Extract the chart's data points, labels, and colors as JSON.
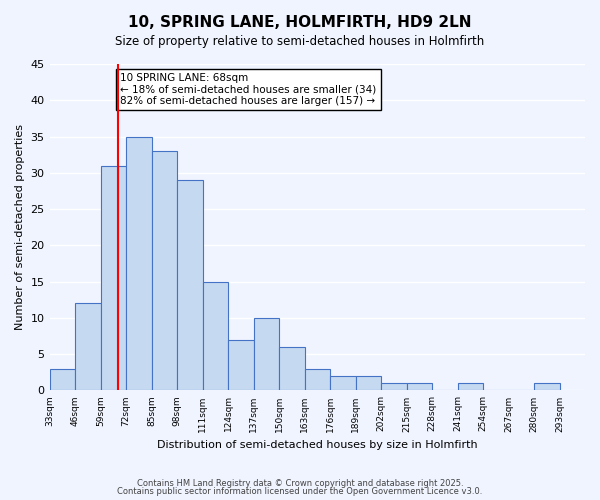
{
  "title": "10, SPRING LANE, HOLMFIRTH, HD9 2LN",
  "subtitle": "Size of property relative to semi-detached houses in Holmfirth",
  "bar_values": [
    3,
    12,
    31,
    35,
    33,
    29,
    15,
    7,
    10,
    6,
    3,
    2,
    2,
    1,
    1,
    0,
    1,
    0,
    0,
    1
  ],
  "bin_labels": [
    "33sqm",
    "46sqm",
    "59sqm",
    "72sqm",
    "85sqm",
    "98sqm",
    "111sqm",
    "124sqm",
    "137sqm",
    "150sqm",
    "163sqm",
    "176sqm",
    "189sqm",
    "202sqm",
    "215sqm",
    "228sqm",
    "241sqm",
    "254sqm",
    "267sqm",
    "280sqm",
    "293sqm"
  ],
  "bar_color": "#c5d9f1",
  "bar_edge_color": "#4472c4",
  "property_line_x": 68,
  "property_line_color": "red",
  "annotation_text": "10 SPRING LANE: 68sqm\n← 18% of semi-detached houses are smaller (34)\n82% of semi-detached houses are larger (157) →",
  "annotation_box_color": "white",
  "annotation_box_edge_color": "black",
  "xlabel": "Distribution of semi-detached houses by size in Holmfirth",
  "ylabel": "Number of semi-detached properties",
  "ylim": [
    0,
    45
  ],
  "yticks": [
    0,
    5,
    10,
    15,
    20,
    25,
    30,
    35,
    40,
    45
  ],
  "bin_edges": [
    33,
    46,
    59,
    72,
    85,
    98,
    111,
    124,
    137,
    150,
    163,
    176,
    189,
    202,
    215,
    228,
    241,
    254,
    267,
    280,
    293
  ],
  "footer1": "Contains HM Land Registry data © Crown copyright and database right 2025.",
  "footer2": "Contains public sector information licensed under the Open Government Licence v3.0.",
  "background_color": "#f0f4ff",
  "grid_color": "white"
}
